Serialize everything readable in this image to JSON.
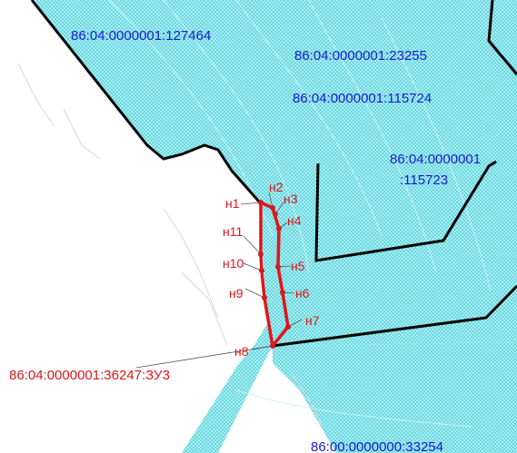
{
  "colors": {
    "water_fill": "#8fe6ec",
    "boundary": "#000000",
    "parcel_outline": "#e0151a",
    "cadastral_text": "#1a1ad0",
    "point_text": "#e0151a"
  },
  "cadastral_labels": {
    "parcel_127464": "86:04:0000001:127464",
    "parcel_23255": "86:04:0000001:23255",
    "parcel_115724": "86:04:0000001:115724",
    "parcel_115723_line1": "86:04:0000001",
    "parcel_115723_line2": ":115723",
    "parcel_33254": "86:00:0000000:33254"
  },
  "new_parcel": {
    "id": "86:04:0000001:36247:ЗУ3",
    "points": [
      "н1",
      "н2",
      "н3",
      "н4",
      "н5",
      "н6",
      "н7",
      "н8",
      "н9",
      "н10",
      "н11"
    ]
  }
}
